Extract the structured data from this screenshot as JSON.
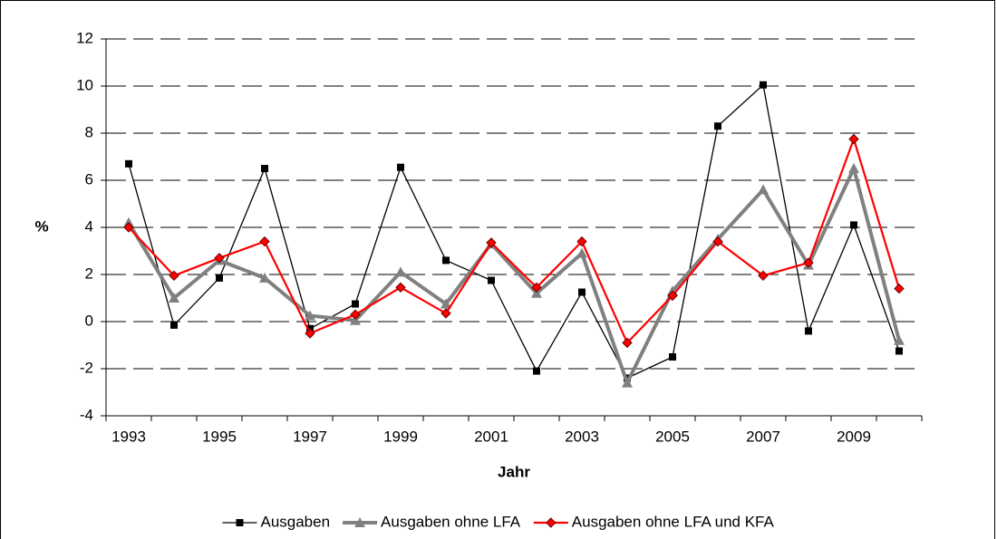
{
  "chart_data": {
    "type": "line",
    "y_label": "%",
    "x_label": "Jahr",
    "categories": [
      "1993",
      null,
      "1995",
      null,
      "1997",
      null,
      "1999",
      null,
      "2001",
      null,
      "2003",
      null,
      "2005",
      null,
      "2007",
      null,
      "2009",
      null
    ],
    "ylim": [
      -4,
      12
    ],
    "yticks": [
      -4,
      -2,
      0,
      2,
      4,
      6,
      8,
      10,
      12
    ],
    "grid": true,
    "legend": "bottom",
    "series": [
      {
        "name": "Ausgaben",
        "color": "#000000",
        "marker": "square",
        "values": [
          6.7,
          -0.15,
          1.85,
          6.5,
          -0.3,
          0.75,
          6.55,
          2.6,
          1.75,
          -2.1,
          1.25,
          -2.4,
          -1.5,
          8.3,
          10.05,
          -0.4,
          4.1,
          -1.25
        ]
      },
      {
        "name": "Ausgaben ohne LFA",
        "color": "#808080",
        "marker": "triangle",
        "values": [
          4.2,
          1.0,
          2.6,
          1.85,
          0.25,
          0.05,
          2.1,
          0.75,
          3.3,
          1.2,
          2.9,
          -2.6,
          1.3,
          3.5,
          5.6,
          2.4,
          6.5,
          -0.8
        ]
      },
      {
        "name": "Ausgaben ohne LFA und KFA",
        "color": "#ff0000",
        "marker": "diamond",
        "values": [
          4.0,
          1.95,
          2.7,
          3.4,
          -0.5,
          0.3,
          1.45,
          0.35,
          3.35,
          1.45,
          3.4,
          -0.9,
          1.1,
          3.4,
          1.95,
          2.5,
          7.75,
          1.4
        ]
      }
    ]
  }
}
